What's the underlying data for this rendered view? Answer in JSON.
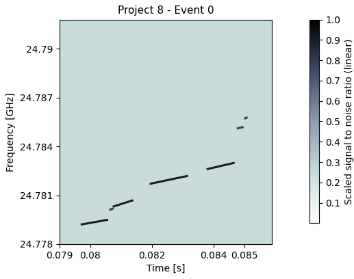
{
  "chart_data": {
    "type": "spectrogram",
    "title": "Project 8 - Event 0",
    "x_label": "Time [s]",
    "y_label": "Frequency [GHz]",
    "xlim": [
      0.079,
      0.0859
    ],
    "xticks": [
      0.079,
      0.08,
      0.082,
      0.084,
      0.085
    ],
    "ylim": [
      24.778,
      24.7918
    ],
    "yticks": [
      24.778,
      24.781,
      24.784,
      24.787,
      24.79
    ],
    "colorbar_label": "Scaled signal to noise ratio (linear)",
    "colorbar_range": [
      0,
      1
    ],
    "colorbar_ticks": [
      0.1,
      0.2,
      0.3,
      0.4,
      0.5,
      0.6,
      0.7,
      0.8,
      0.9,
      {
        "value": 1.0,
        "label": "1.0"
      }
    ],
    "tracks": [
      {
        "t": [
          0.07969,
          0.08058
        ],
        "f": [
          24.7792,
          24.7795
        ],
        "value": 0.9
      },
      {
        "t": [
          0.08062,
          0.08076
        ],
        "f": [
          24.7801,
          24.7802
        ],
        "value": 0.8
      },
      {
        "t": [
          0.08073,
          0.0814
        ],
        "f": [
          24.7803,
          24.7807
        ],
        "value": 0.9
      },
      {
        "t": [
          0.08193,
          0.08318
        ],
        "f": [
          24.7817,
          24.7822
        ],
        "value": 0.9
      },
      {
        "t": [
          0.08378,
          0.08469
        ],
        "f": [
          24.7826,
          24.783
        ],
        "value": 0.9
      },
      {
        "t": [
          0.08476,
          0.08498
        ],
        "f": [
          24.7851,
          24.7852
        ],
        "value": 0.8
      },
      {
        "t": [
          0.085,
          0.08511
        ],
        "f": [
          24.7857,
          24.7858
        ],
        "value": 0.8
      }
    ]
  }
}
